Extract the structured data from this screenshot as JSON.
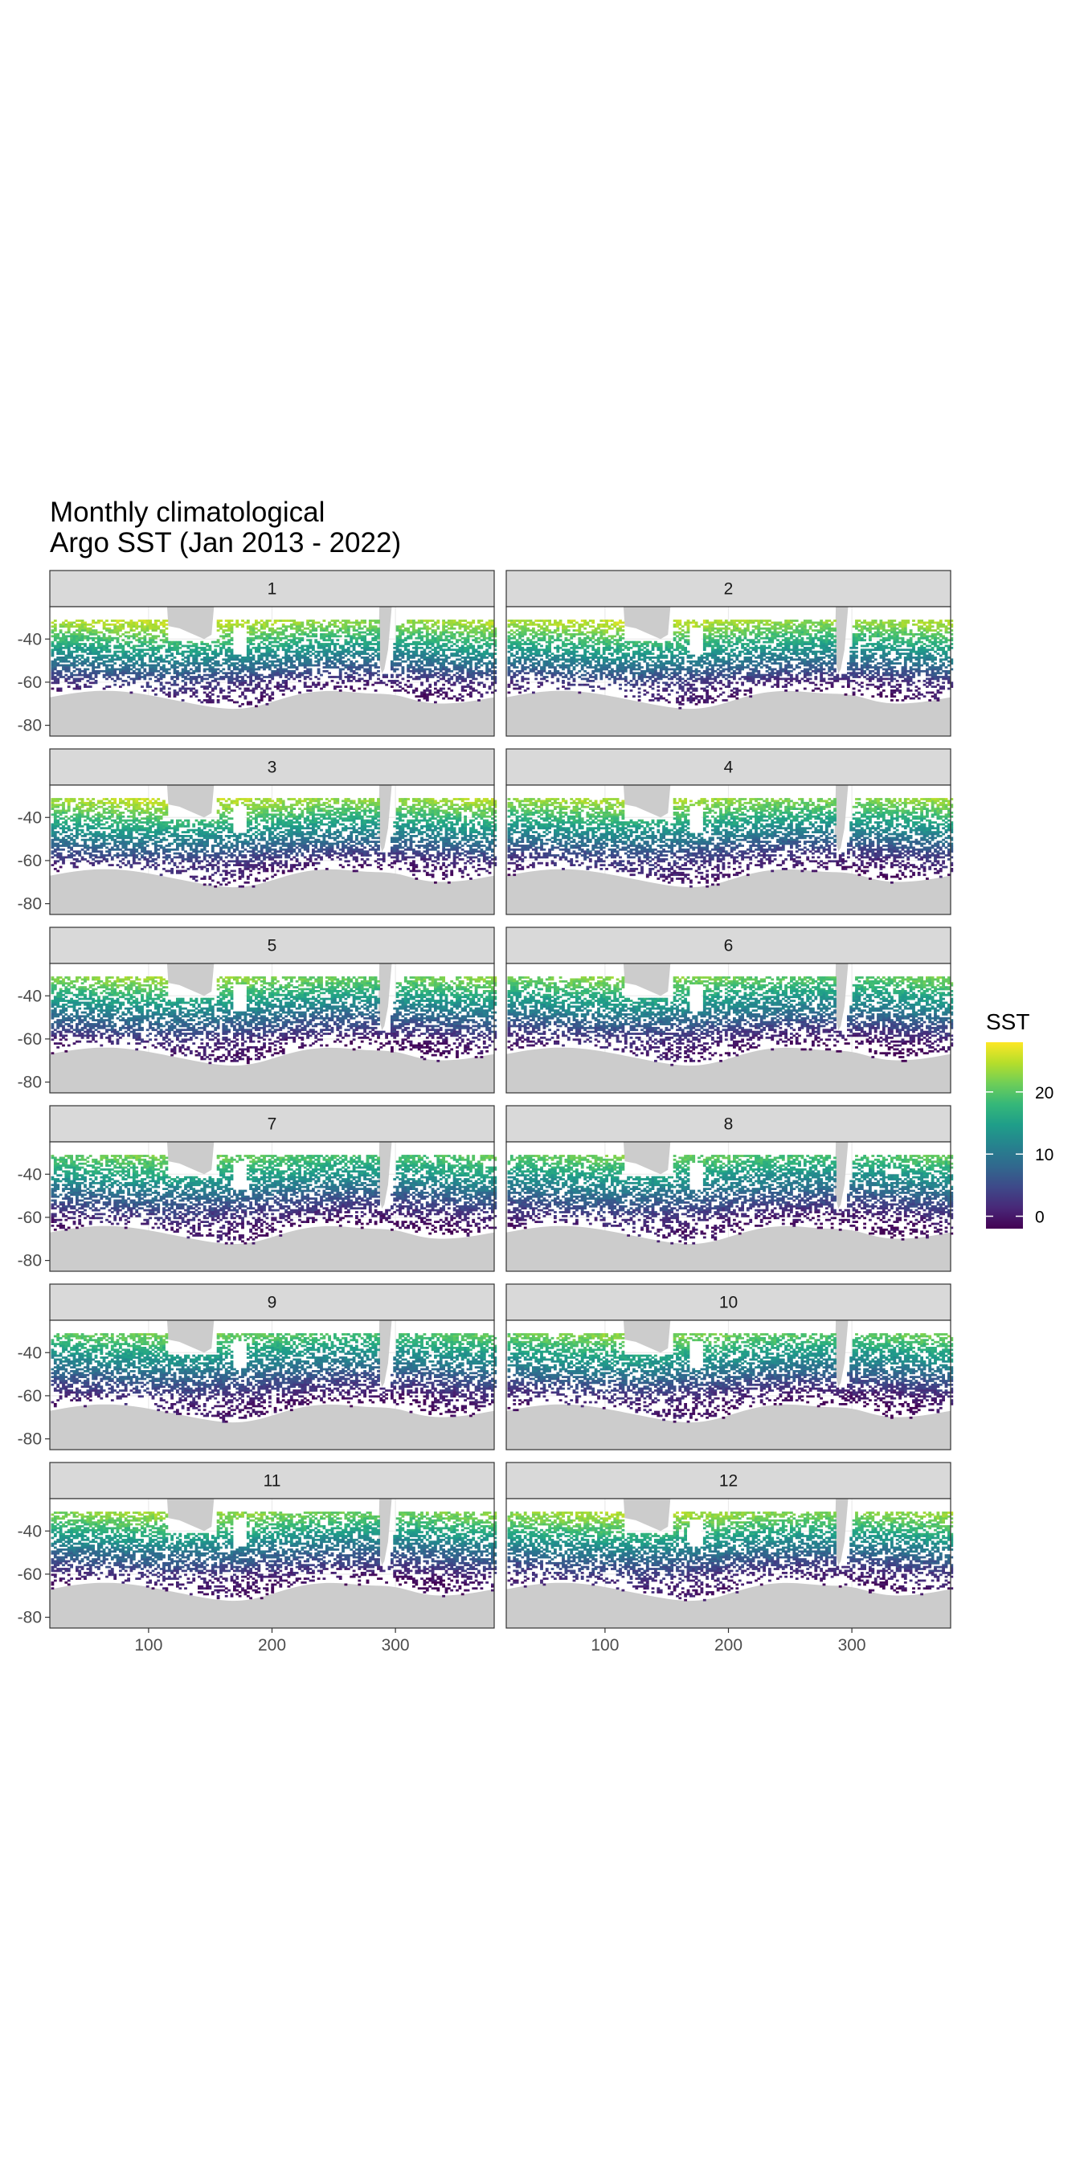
{
  "title_lines": [
    "Monthly climatological",
    "Argo SST (Jan 2013 - 2022)"
  ],
  "chart_data": {
    "type": "heatmap",
    "title": "Monthly climatological Argo SST (Jan 2013 - 2022)",
    "facet_labels": [
      "1",
      "2",
      "3",
      "4",
      "5",
      "6",
      "7",
      "8",
      "9",
      "10",
      "11",
      "12"
    ],
    "facet_layout": "2 columns x 6 rows",
    "x_ticks": [
      100,
      200,
      300
    ],
    "y_ticks": [
      -40,
      -60,
      -80
    ],
    "xlim": [
      20,
      380
    ],
    "ylim": [
      -85,
      -25
    ],
    "lat_range": [
      -80,
      -30
    ],
    "legend": {
      "title": "SST",
      "ticks": [
        0,
        10,
        20
      ],
      "range": [
        -2,
        28
      ],
      "position": "right"
    },
    "colors": {
      "low": "#440154",
      "mid_low": "#31688e",
      "mid": "#21908c",
      "mid_high": "#5ec962",
      "high": "#fde725",
      "land": "#cccccc",
      "strip": "#d9d9d9",
      "grid": "#ebebeb"
    },
    "grid": true,
    "monthly_field": {
      "note": "SST (deg C) by latitude band, read from colour",
      "latitudes": [
        -32,
        -35,
        -40,
        -45,
        -50,
        -55,
        -60,
        -65,
        -70
      ],
      "sst_by_month": [
        [
          24,
          22,
          18,
          14,
          10,
          6,
          2,
          0,
          -1
        ],
        [
          24,
          22,
          18,
          14,
          10,
          6,
          2,
          0,
          -1
        ],
        [
          24,
          22,
          18,
          14,
          10,
          6,
          2,
          0,
          -1
        ],
        [
          23,
          21,
          17,
          13,
          9,
          5,
          2,
          0,
          -1
        ],
        [
          22,
          20,
          16,
          12,
          8,
          5,
          1,
          -1,
          -1
        ],
        [
          21,
          19,
          15,
          12,
          8,
          4,
          1,
          -1,
          -1
        ],
        [
          20,
          18,
          15,
          11,
          7,
          4,
          1,
          -1,
          -1
        ],
        [
          20,
          18,
          14,
          11,
          7,
          4,
          1,
          -1,
          -1
        ],
        [
          20,
          18,
          14,
          11,
          7,
          4,
          1,
          -1,
          -1
        ],
        [
          21,
          19,
          15,
          12,
          8,
          4,
          1,
          -1,
          -1
        ],
        [
          22,
          20,
          16,
          12,
          8,
          5,
          1,
          -1,
          -1
        ],
        [
          23,
          21,
          17,
          13,
          9,
          5,
          2,
          0,
          -1
        ]
      ]
    }
  }
}
